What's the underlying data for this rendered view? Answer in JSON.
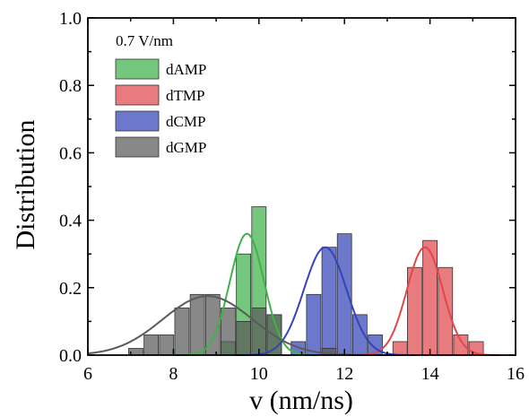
{
  "chart_data": {
    "type": "bar",
    "title": "",
    "xlabel": "v (nm/ns)",
    "ylabel": "Distribution",
    "xlim": [
      6,
      16
    ],
    "ylim": [
      0,
      1.0
    ],
    "xticks": [
      "6",
      "8",
      "10",
      "12",
      "14",
      "16"
    ],
    "yticks": [
      "0.0",
      "0.2",
      "0.4",
      "0.6",
      "0.8",
      "1.0"
    ],
    "grid": false,
    "legend": {
      "title": "0.7 V/nm",
      "placement": "top-left"
    },
    "bin_width": 0.36,
    "series": [
      {
        "name": "dAMP",
        "color": "#3fb24a",
        "bins": [
          {
            "x": 9.28,
            "y": 0.04
          },
          {
            "x": 9.64,
            "y": 0.3
          },
          {
            "x": 10.0,
            "y": 0.44
          },
          {
            "x": 10.36,
            "y": 0.12
          }
        ],
        "fit": {
          "mu": 9.72,
          "sigma": 0.4,
          "amp": 0.36
        }
      },
      {
        "name": "dTMP",
        "color": "#e0474c",
        "bins": [
          {
            "x": 13.3,
            "y": 0.04
          },
          {
            "x": 13.64,
            "y": 0.26
          },
          {
            "x": 14.0,
            "y": 0.34
          },
          {
            "x": 14.36,
            "y": 0.26
          },
          {
            "x": 14.72,
            "y": 0.06
          },
          {
            "x": 15.08,
            "y": 0.04
          }
        ],
        "fit": {
          "mu": 13.88,
          "sigma": 0.42,
          "amp": 0.32
        }
      },
      {
        "name": "dCMP",
        "color": "#3344b8",
        "bins": [
          {
            "x": 10.92,
            "y": 0.04
          },
          {
            "x": 11.28,
            "y": 0.18
          },
          {
            "x": 11.64,
            "y": 0.32
          },
          {
            "x": 12.0,
            "y": 0.36
          },
          {
            "x": 12.36,
            "y": 0.12
          },
          {
            "x": 12.72,
            "y": 0.06
          }
        ],
        "fit": {
          "mu": 11.55,
          "sigma": 0.5,
          "amp": 0.32
        }
      },
      {
        "name": "dGMP",
        "color": "#5a5a5a",
        "bins": [
          {
            "x": 7.12,
            "y": 0.02
          },
          {
            "x": 7.48,
            "y": 0.06
          },
          {
            "x": 7.84,
            "y": 0.06
          },
          {
            "x": 8.2,
            "y": 0.14
          },
          {
            "x": 8.56,
            "y": 0.18
          },
          {
            "x": 8.92,
            "y": 0.18
          },
          {
            "x": 9.28,
            "y": 0.14
          },
          {
            "x": 9.64,
            "y": 0.1
          },
          {
            "x": 10.0,
            "y": 0.14
          },
          {
            "x": 10.36,
            "y": 0.12
          },
          {
            "x": 11.64,
            "y": 0.02
          }
        ],
        "fit": {
          "mu": 8.8,
          "sigma": 1.05,
          "amp": 0.175
        }
      }
    ]
  }
}
